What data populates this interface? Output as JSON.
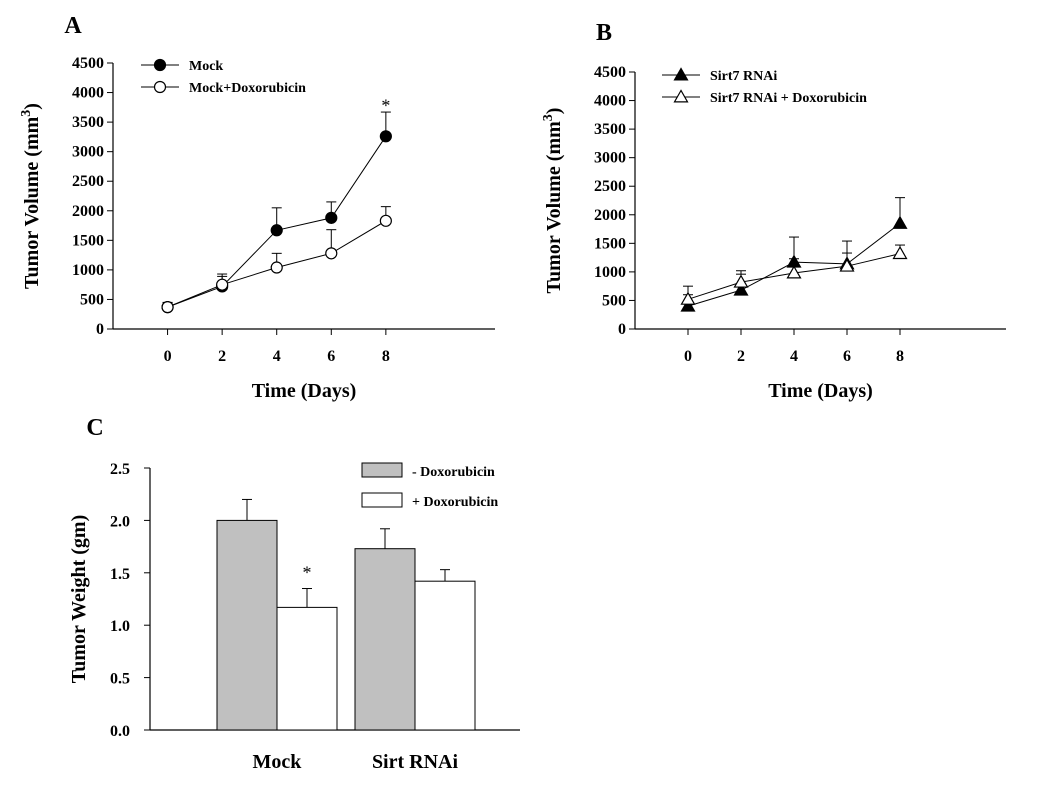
{
  "chart_data": [
    {
      "panel": "A",
      "type": "line",
      "xlabel": "Time (Days)",
      "ylabel": "Tumor Volume (mm³)",
      "x": [
        0,
        2,
        4,
        6,
        8
      ],
      "xlim": [
        -2,
        12
      ],
      "ylim": [
        0,
        4500
      ],
      "yticks": [
        0,
        500,
        1000,
        1500,
        2000,
        2500,
        3000,
        3500,
        4000,
        4500
      ],
      "series": [
        {
          "name": "Mock",
          "marker": "filled-circle",
          "values": [
            370,
            720,
            1670,
            1880,
            3260
          ],
          "errors": [
            80,
            170,
            380,
            270,
            410
          ]
        },
        {
          "name": "Mock+Doxorubicin",
          "marker": "open-circle",
          "values": [
            370,
            750,
            1040,
            1280,
            1830
          ],
          "errors": [
            70,
            180,
            240,
            400,
            240
          ]
        }
      ],
      "annotations": [
        {
          "text": "*",
          "x": 8,
          "y": 3780
        }
      ]
    },
    {
      "panel": "B",
      "type": "line",
      "xlabel": "Time (Days)",
      "ylabel": "Tumor Volume (mm³)",
      "x": [
        0,
        2,
        4,
        6,
        8
      ],
      "xlim": [
        -2,
        12
      ],
      "ylim": [
        0,
        4500
      ],
      "yticks": [
        0,
        500,
        1000,
        1500,
        2000,
        2500,
        3000,
        3500,
        4000,
        4500
      ],
      "series": [
        {
          "name": "Sirt7 RNAi",
          "marker": "filled-triangle",
          "values": [
            400,
            680,
            1170,
            1140,
            1850
          ],
          "errors": [
            200,
            280,
            440,
            400,
            450
          ]
        },
        {
          "name": "Sirt7 RNAi + Doxorubicin",
          "marker": "open-triangle",
          "values": [
            520,
            820,
            980,
            1100,
            1320
          ],
          "errors": [
            230,
            200,
            250,
            230,
            150
          ]
        }
      ]
    },
    {
      "panel": "C",
      "type": "bar",
      "ylabel": "Tumor Weight (gm)",
      "categories": [
        "Mock",
        "Sirt RNAi"
      ],
      "ylim": [
        0,
        2.5
      ],
      "yticks": [
        "0.0",
        "0.5",
        "1.0",
        "1.5",
        "2.0",
        "2.5"
      ],
      "series": [
        {
          "name": "- Doxorubicin",
          "color": "#c0c0c0",
          "values": [
            2.0,
            1.73
          ],
          "errors": [
            0.2,
            0.19
          ]
        },
        {
          "name": "+ Doxorubicin",
          "color": "#ffffff",
          "values": [
            1.17,
            1.42
          ],
          "errors": [
            0.18,
            0.11
          ]
        }
      ],
      "annotations": [
        {
          "text": "*",
          "category": "Mock",
          "series": "+ Doxorubicin"
        }
      ]
    }
  ]
}
